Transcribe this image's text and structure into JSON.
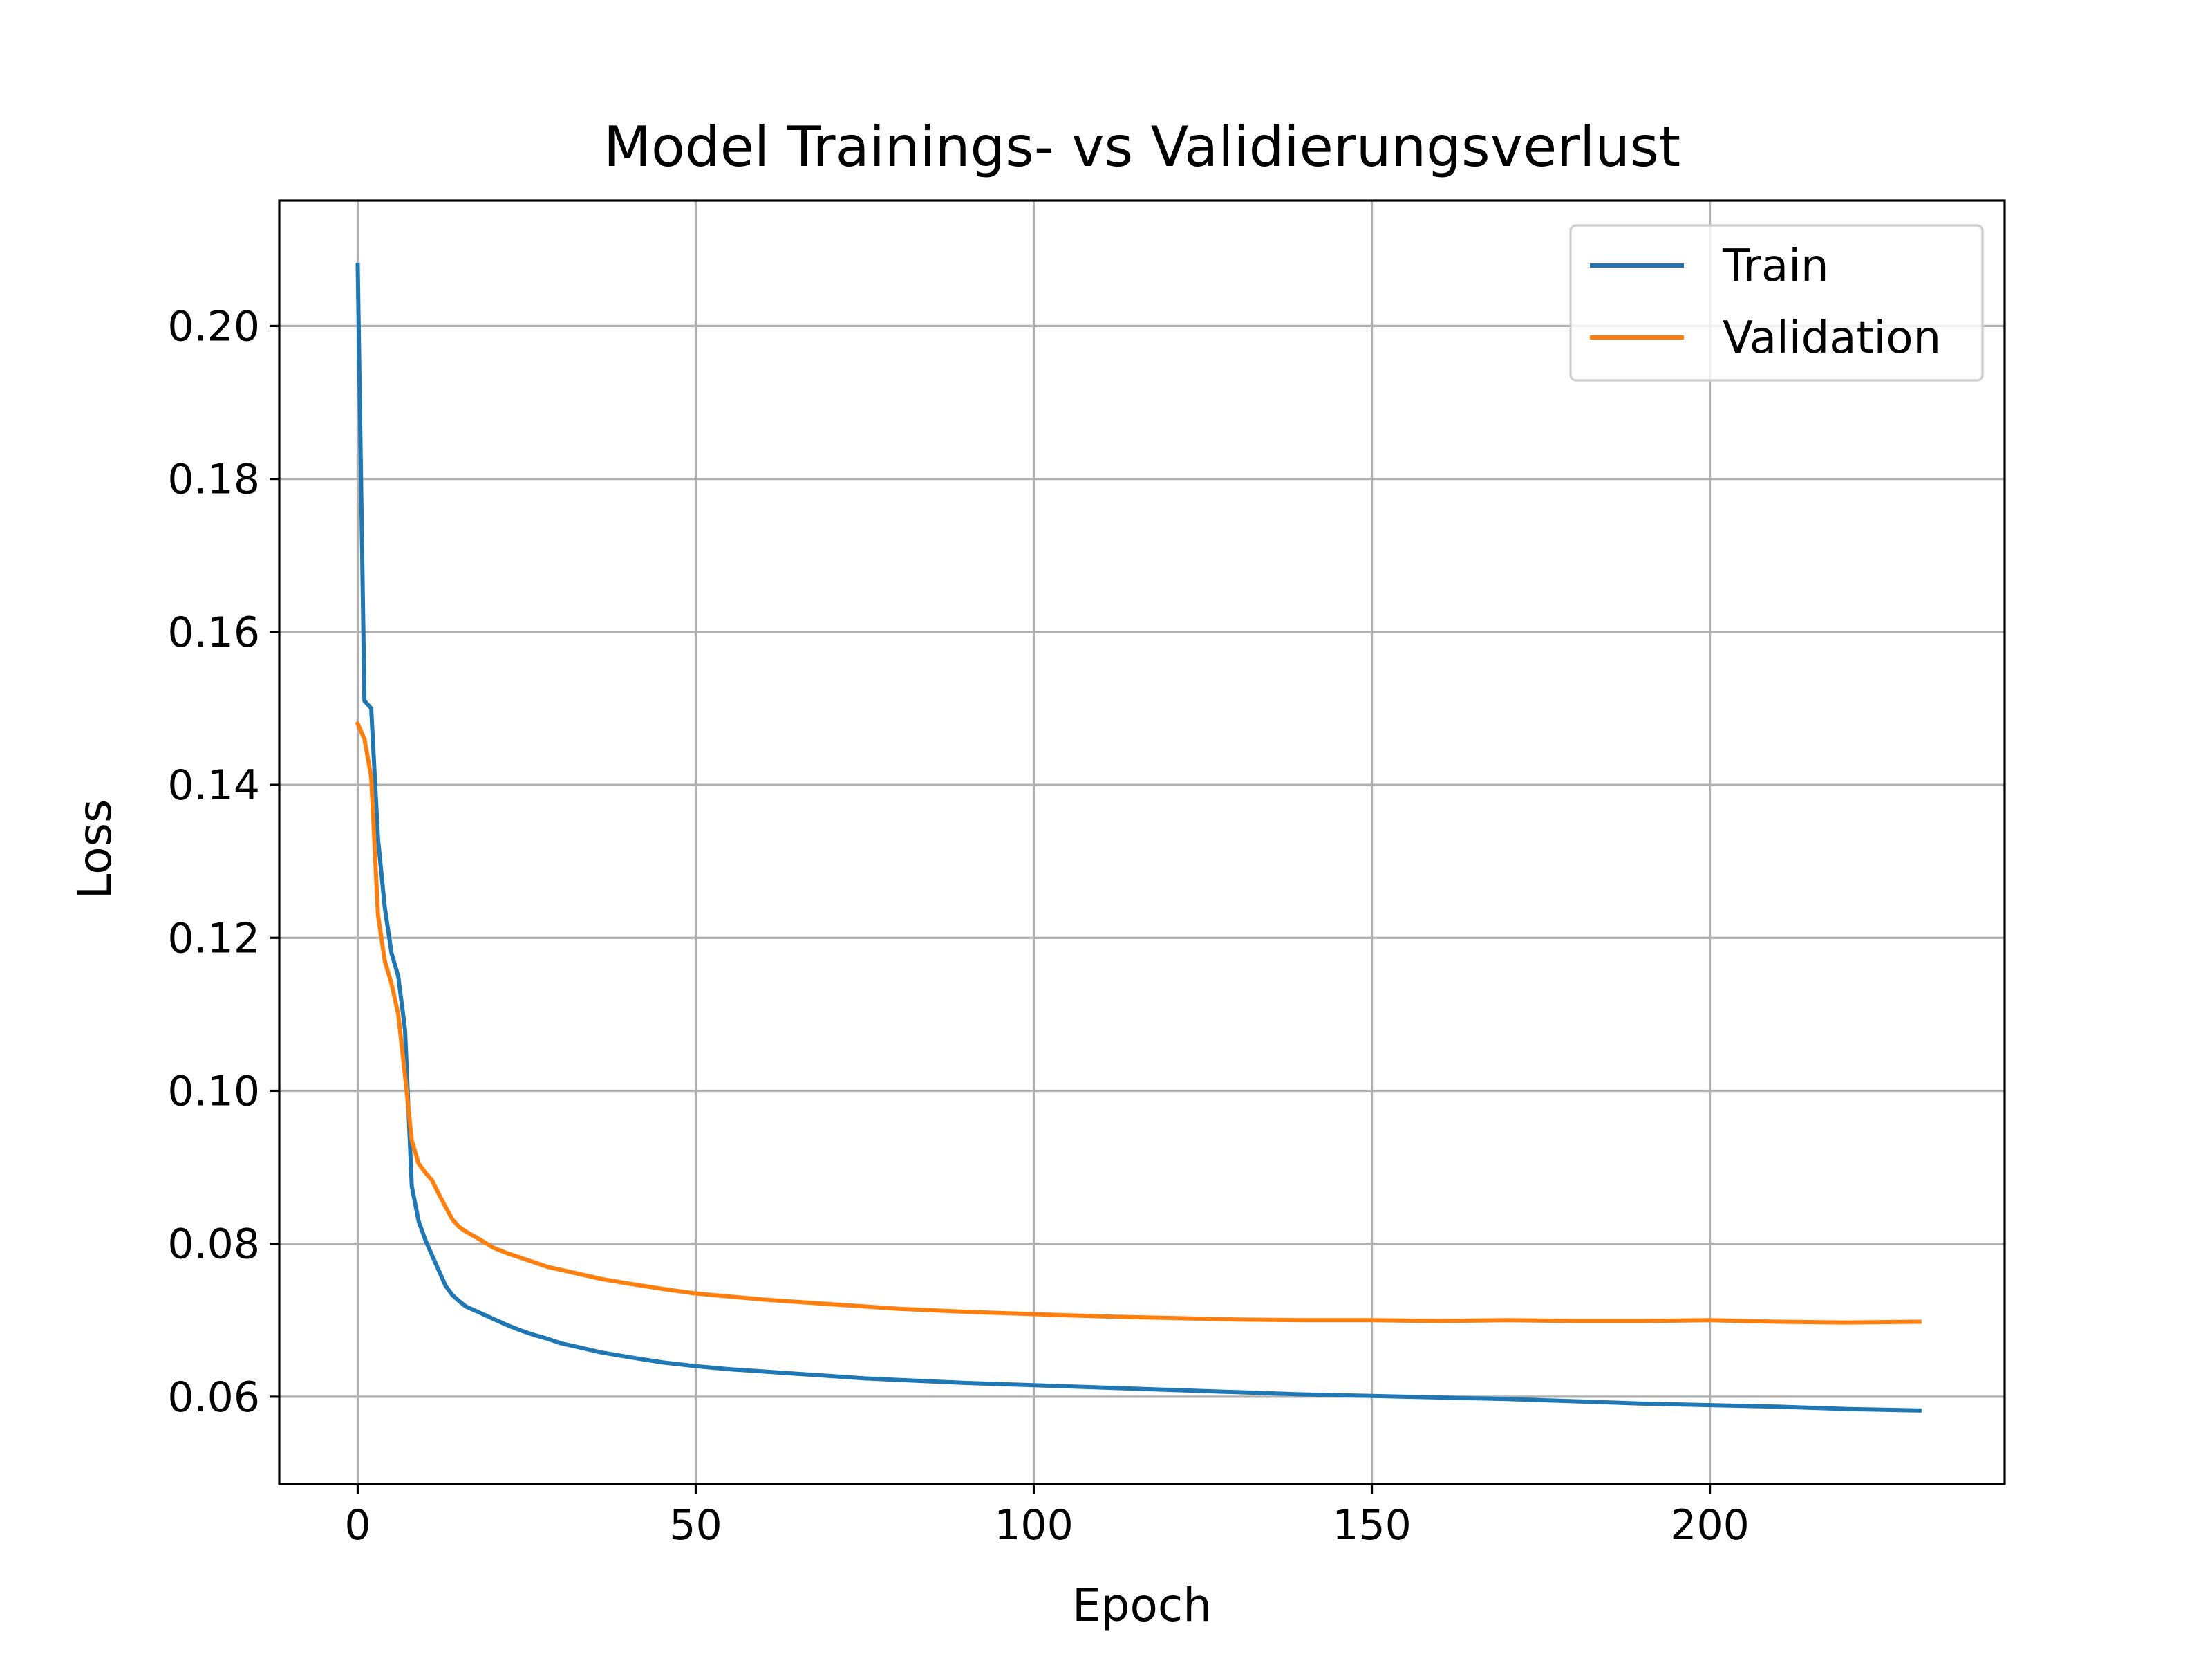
{
  "chart_data": {
    "type": "line",
    "title": "Model Trainings- vs Validierungsverlust",
    "xlabel": "Epoch",
    "ylabel": "Loss",
    "xlim": [
      -11.6,
      243.6
    ],
    "ylim": [
      0.0486,
      0.2164
    ],
    "grid": true,
    "legend_position": "top-right",
    "x_ticks": [
      0,
      50,
      100,
      150,
      200
    ],
    "x_tick_labels": [
      "0",
      "50",
      "100",
      "150",
      "200"
    ],
    "y_ticks": [
      0.06,
      0.08,
      0.1,
      0.12,
      0.14,
      0.16,
      0.18,
      0.2
    ],
    "y_tick_labels": [
      "0.06",
      "0.08",
      "0.10",
      "0.12",
      "0.14",
      "0.16",
      "0.18",
      "0.20"
    ],
    "series": [
      {
        "name": "Train",
        "color": "#1f77b4",
        "x": [
          0,
          1,
          2,
          3,
          4,
          5,
          6,
          7,
          8,
          9,
          10,
          11,
          12,
          13,
          14,
          15,
          16,
          18,
          20,
          22,
          24,
          26,
          28,
          30,
          33,
          36,
          40,
          45,
          50,
          55,
          60,
          65,
          70,
          75,
          80,
          90,
          100,
          110,
          120,
          130,
          140,
          150,
          160,
          170,
          180,
          190,
          200,
          210,
          220,
          231
        ],
        "y": [
          0.208,
          0.151,
          0.15,
          0.133,
          0.124,
          0.118,
          0.115,
          0.108,
          0.0875,
          0.083,
          0.0805,
          0.0785,
          0.0765,
          0.0745,
          0.0733,
          0.0725,
          0.0718,
          0.071,
          0.0702,
          0.0694,
          0.0687,
          0.0681,
          0.0676,
          0.067,
          0.0664,
          0.0658,
          0.0652,
          0.0645,
          0.064,
          0.0636,
          0.0633,
          0.063,
          0.0627,
          0.0624,
          0.0622,
          0.0618,
          0.0615,
          0.0612,
          0.0609,
          0.0606,
          0.0603,
          0.0601,
          0.0599,
          0.0597,
          0.0594,
          0.0591,
          0.0589,
          0.0587,
          0.0584,
          0.0582
        ]
      },
      {
        "name": "Validation",
        "color": "#ff7f0e",
        "x": [
          0,
          1,
          2,
          3,
          4,
          5,
          6,
          7,
          8,
          9,
          10,
          11,
          12,
          13,
          14,
          15,
          16,
          18,
          20,
          22,
          24,
          26,
          28,
          30,
          33,
          36,
          40,
          45,
          50,
          55,
          60,
          65,
          70,
          75,
          80,
          90,
          100,
          110,
          120,
          130,
          140,
          150,
          160,
          170,
          180,
          190,
          200,
          210,
          220,
          231
        ],
        "y": [
          0.148,
          0.146,
          0.141,
          0.123,
          0.117,
          0.114,
          0.11,
          0.102,
          0.0935,
          0.0905,
          0.0893,
          0.0883,
          0.0865,
          0.0848,
          0.0832,
          0.0822,
          0.0816,
          0.0806,
          0.0795,
          0.0788,
          0.0782,
          0.0776,
          0.077,
          0.0766,
          0.076,
          0.0754,
          0.0748,
          0.0741,
          0.0735,
          0.0731,
          0.0727,
          0.0724,
          0.0721,
          0.0718,
          0.0715,
          0.0711,
          0.0708,
          0.0705,
          0.0703,
          0.0701,
          0.07,
          0.07,
          0.0699,
          0.07,
          0.0699,
          0.0699,
          0.07,
          0.0698,
          0.0697,
          0.0698
        ]
      }
    ]
  }
}
